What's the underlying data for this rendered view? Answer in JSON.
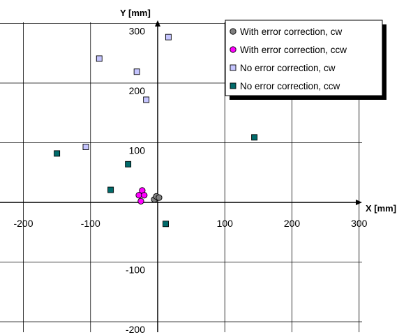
{
  "chart_data": {
    "type": "scatter",
    "xlabel": "X [mm]",
    "ylabel": "Y [mm]",
    "xlim": [
      -200,
      300
    ],
    "ylim": [
      -200,
      300
    ],
    "x_ticks": [
      -200,
      -100,
      100,
      200,
      300
    ],
    "y_ticks": [
      -200,
      -100,
      100,
      200,
      300
    ],
    "x_tick_labels": [
      "-200",
      "-100",
      "100",
      "200",
      "300"
    ],
    "y_tick_labels": [
      "-200",
      "-100",
      "100",
      "200",
      "300"
    ],
    "grid": true,
    "legend_position": "top-right",
    "series": [
      {
        "name": "With error correction, cw",
        "marker": "circle",
        "color": "#808080",
        "points": [
          [
            -5,
            5
          ],
          [
            -2,
            10
          ],
          [
            2,
            8
          ]
        ]
      },
      {
        "name": "With error correction, ccw",
        "marker": "circle",
        "color": "#ff00ff",
        "points": [
          [
            -23,
            20
          ],
          [
            -28,
            12
          ],
          [
            -20,
            12
          ],
          [
            -25,
            2
          ]
        ]
      },
      {
        "name": "No error correction, cw",
        "marker": "square",
        "color": "#c5c5ff",
        "points": [
          [
            16,
            277
          ],
          [
            -87,
            241
          ],
          [
            -31,
            219
          ],
          [
            -17,
            172
          ],
          [
            -107,
            93
          ]
        ]
      },
      {
        "name": "No error correction, ccw",
        "marker": "square",
        "color": "#006b6b",
        "points": [
          [
            -150,
            82
          ],
          [
            144,
            109
          ],
          [
            -44,
            64
          ],
          [
            -70,
            21
          ],
          [
            12,
            -36
          ]
        ]
      }
    ]
  }
}
